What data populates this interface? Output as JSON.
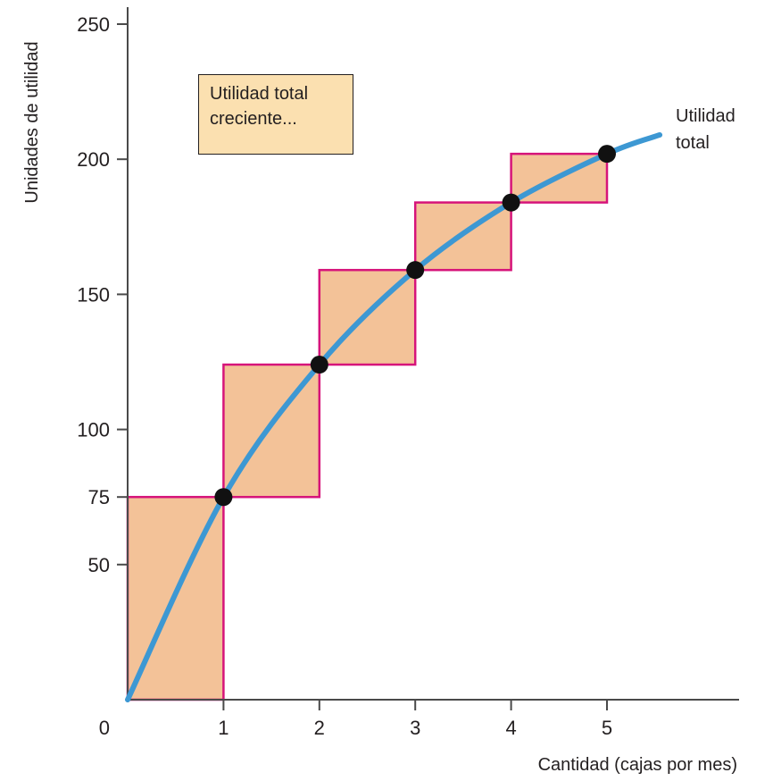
{
  "chart_data": {
    "type": "line",
    "xlabel": "Cantidad (cajas por mes)",
    "ylabel": "Unidades de utilidad",
    "x_ticks": [
      "0",
      "1",
      "2",
      "3",
      "4",
      "5"
    ],
    "y_ticks": [
      "50",
      "75",
      "100",
      "150",
      "200",
      "250"
    ],
    "xlim": [
      0,
      6.3
    ],
    "ylim": [
      0,
      255
    ],
    "series": [
      {
        "name": "Utilidad total",
        "x": [
          0,
          1,
          2,
          3,
          4,
          5
        ],
        "values": [
          0,
          75,
          124,
          159,
          184,
          202
        ]
      }
    ],
    "curve_extension": {
      "x": 5.55,
      "y": 209
    },
    "bars": [
      {
        "x0": 0,
        "x1": 1,
        "y0": 0,
        "y1": 75
      },
      {
        "x0": 1,
        "x1": 2,
        "y0": 75,
        "y1": 124
      },
      {
        "x0": 2,
        "x1": 3,
        "y0": 124,
        "y1": 159
      },
      {
        "x0": 3,
        "x1": 4,
        "y0": 159,
        "y1": 184
      },
      {
        "x0": 4,
        "x1": 5,
        "y0": 184,
        "y1": 202
      }
    ],
    "annotations": {
      "callout": [
        "Utilidad total",
        "creciente..."
      ],
      "curve_label": [
        "Utilidad",
        "total"
      ]
    },
    "colors": {
      "curve": "#3d98d3",
      "bar_fill": "#f3c298",
      "bar_stroke": "#d6147a",
      "callout_fill": "#fbe0b0",
      "axis": "#4a4a4a"
    },
    "grid": false
  }
}
